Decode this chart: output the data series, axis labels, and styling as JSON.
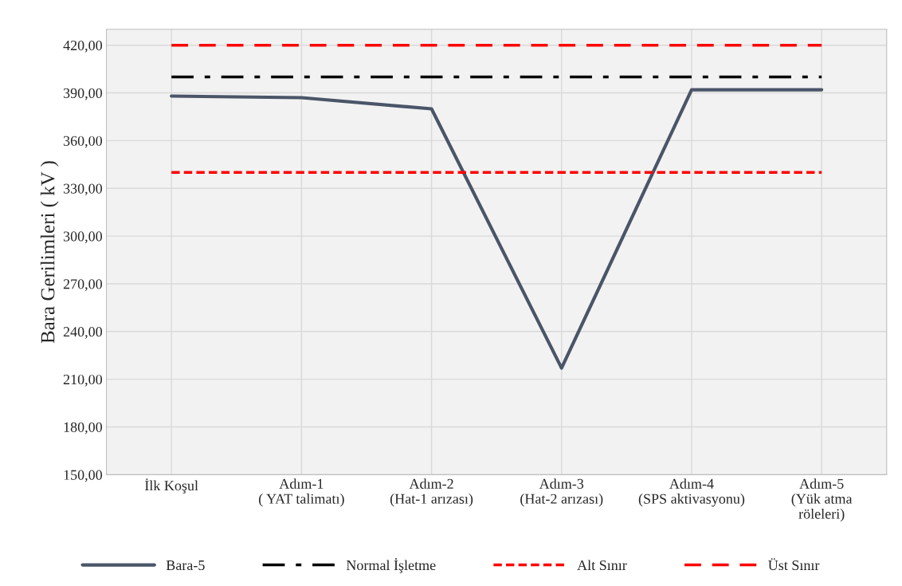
{
  "chart_data": {
    "type": "line",
    "ylabel": "Bara Gerilimleri ( kV )",
    "categories": [
      "İlk Koşul",
      "Adım-1\n( YAT talimatı)",
      "Adım-2\n(Hat-1 arızası)",
      "Adım-3\n(Hat-2 arızası)",
      "Adım-4\n(SPS aktivasyonu)",
      "Adım-5\n(Yük atma\nröleleri)"
    ],
    "series": [
      {
        "name": "Bara-5",
        "color": "#4a5568",
        "line_style": "solid",
        "values": [
          388,
          387,
          380,
          217,
          392,
          392
        ]
      },
      {
        "name": "Normal İşletme",
        "color": "#000000",
        "line_style": "dashdot",
        "values": [
          400,
          400,
          400,
          400,
          400,
          400
        ]
      },
      {
        "name": "Alt Sınır",
        "color": "#ff0000",
        "line_style": "dotted",
        "values": [
          340,
          340,
          340,
          340,
          340,
          340
        ]
      },
      {
        "name": "Üst Sınır",
        "color": "#ff0000",
        "line_style": "dashed",
        "values": [
          420,
          420,
          420,
          420,
          420,
          420
        ]
      }
    ],
    "ylim": [
      150,
      430
    ],
    "yticks": [
      {
        "value": 150,
        "label": "150,00"
      },
      {
        "value": 180,
        "label": "180,00"
      },
      {
        "value": 210,
        "label": "210,00"
      },
      {
        "value": 240,
        "label": "240,00"
      },
      {
        "value": 270,
        "label": "270,00"
      },
      {
        "value": 300,
        "label": "300,00"
      },
      {
        "value": 330,
        "label": "330,00"
      },
      {
        "value": 360,
        "label": "360,00"
      },
      {
        "value": 390,
        "label": "390,00"
      },
      {
        "value": 420,
        "label": "420,00"
      }
    ],
    "grid": true,
    "legend": "bottom",
    "marker": "none"
  }
}
